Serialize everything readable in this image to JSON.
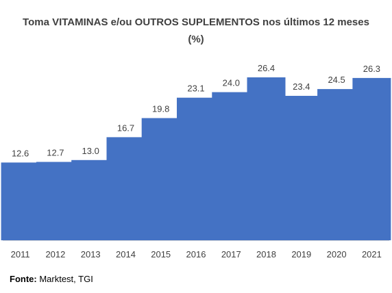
{
  "chart_data": {
    "type": "bar",
    "title": "Toma VITAMINAS e/ou OUTROS SUPLEMENTOS nos últimos 12 meses (%)",
    "categories": [
      "2011",
      "2012",
      "2013",
      "2014",
      "2015",
      "2016",
      "2017",
      "2018",
      "2019",
      "2020",
      "2021"
    ],
    "values": [
      12.6,
      12.7,
      13.0,
      16.7,
      19.8,
      23.1,
      24.0,
      26.4,
      23.4,
      24.5,
      26.3
    ],
    "data_labels": [
      "12.6",
      "12.7",
      "13.0",
      "16.7",
      "19.8",
      "23.1",
      "24.0",
      "26.4",
      "23.4",
      "24.5",
      "26.3"
    ],
    "ylim": [
      0,
      26.4
    ],
    "bar_color": "#4472C4",
    "grid": false,
    "legend": "none"
  },
  "source": {
    "label": "Fonte:",
    "text": " Marktest, TGI"
  }
}
